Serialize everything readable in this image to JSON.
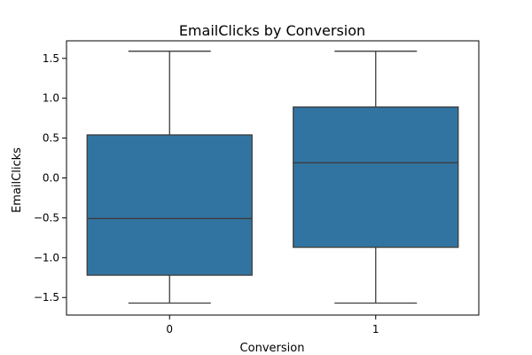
{
  "chart_data": {
    "type": "box",
    "title": "EmailClicks by Conversion",
    "xlabel": "Conversion",
    "ylabel": "EmailClicks",
    "categories": [
      "0",
      "1"
    ],
    "ylim": [
      -1.72,
      1.72
    ],
    "yticks": [
      -1.5,
      -1.0,
      -0.5,
      0.0,
      0.5,
      1.0,
      1.5
    ],
    "ytick_labels": [
      "−1.5",
      "−1.0",
      "−0.5",
      "0.0",
      "0.5",
      "1.0",
      "1.5"
    ],
    "boxes": [
      {
        "category": "0",
        "whisker_low": -1.57,
        "q1": -1.22,
        "median": -0.51,
        "q3": 0.54,
        "whisker_high": 1.59
      },
      {
        "category": "1",
        "whisker_low": -1.57,
        "q1": -0.87,
        "median": 0.19,
        "q3": 0.89,
        "whisker_high": 1.59
      }
    ],
    "grid": false,
    "legend": "none",
    "colors": {
      "box_fill": "#3274a1",
      "line": "#3d3d3d",
      "frame": "#000000"
    }
  }
}
